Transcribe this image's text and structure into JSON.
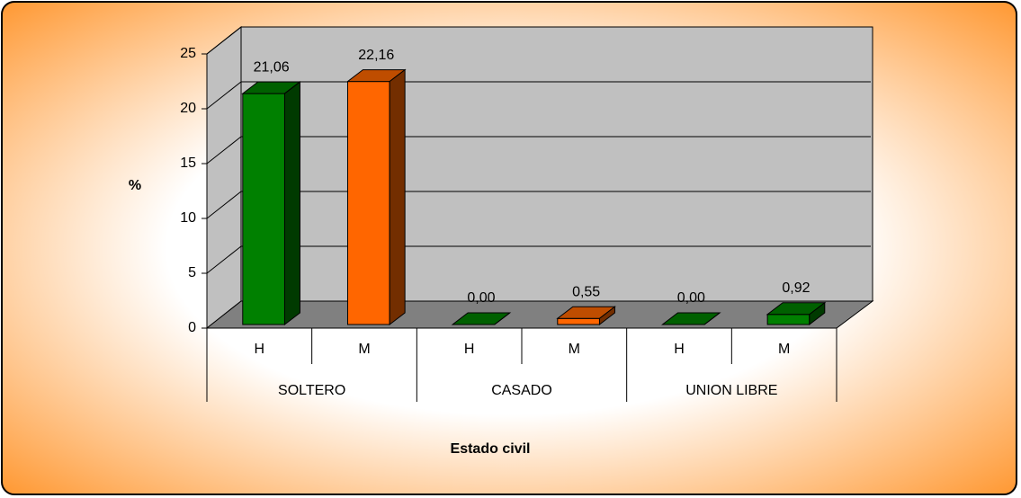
{
  "chart_data": {
    "type": "bar3d",
    "x_label": "Estado civil",
    "y_label": "%",
    "categories": [
      "H",
      "M",
      "H",
      "M",
      "H",
      "M"
    ],
    "groups": [
      "SOLTERO",
      "CASADO",
      "UNION LIBRE"
    ],
    "values": [
      21.06,
      22.16,
      0.0,
      0.55,
      0.0,
      0.92
    ],
    "value_labels": [
      "21,06",
      "22,16",
      "0,00",
      "0,55",
      "0,00",
      "0,92"
    ],
    "colors": [
      "#008000",
      "#ff6600",
      "#008000",
      "#ff6600",
      "#008000",
      "#008000"
    ],
    "ylim": [
      0,
      25
    ],
    "yticks": [
      0,
      5,
      10,
      15,
      20,
      25
    ],
    "grid": true
  }
}
